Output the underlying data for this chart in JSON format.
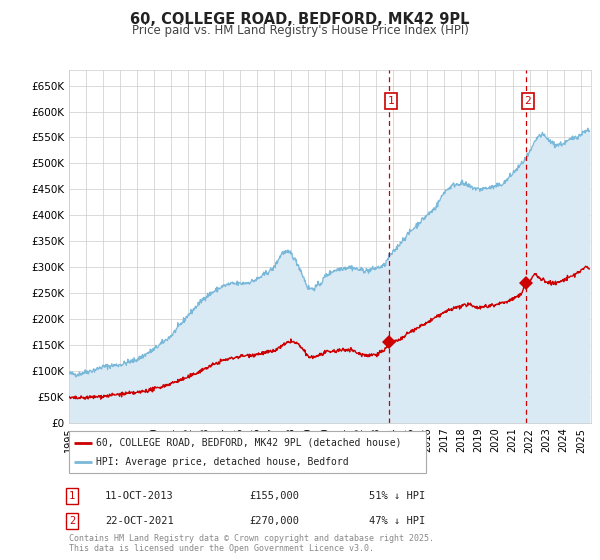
{
  "title": "60, COLLEGE ROAD, BEDFORD, MK42 9PL",
  "subtitle": "Price paid vs. HM Land Registry's House Price Index (HPI)",
  "title_fontsize": 10.5,
  "subtitle_fontsize": 8.5,
  "hpi_color": "#7ab8d9",
  "hpi_fill_color": "#daeaf5",
  "price_color": "#cc0000",
  "background_color": "#ffffff",
  "grid_color": "#cccccc",
  "ylim": [
    0,
    680000
  ],
  "yticks": [
    0,
    50000,
    100000,
    150000,
    200000,
    250000,
    300000,
    350000,
    400000,
    450000,
    500000,
    550000,
    600000,
    650000
  ],
  "ytick_labels": [
    "£0",
    "£50K",
    "£100K",
    "£150K",
    "£200K",
    "£250K",
    "£300K",
    "£350K",
    "£400K",
    "£450K",
    "£500K",
    "£550K",
    "£600K",
    "£650K"
  ],
  "xlim_start": 1995.0,
  "xlim_end": 2025.6,
  "xtick_years": [
    1995,
    1996,
    1997,
    1998,
    1999,
    2000,
    2001,
    2002,
    2003,
    2004,
    2005,
    2006,
    2007,
    2008,
    2009,
    2010,
    2011,
    2012,
    2013,
    2014,
    2015,
    2016,
    2017,
    2018,
    2019,
    2020,
    2021,
    2022,
    2023,
    2024,
    2025
  ],
  "transaction1": {
    "date": 2013.78,
    "price": 155000,
    "label": "1",
    "desc": "11-OCT-2013",
    "price_str": "£155,000",
    "pct": "51% ↓ HPI"
  },
  "transaction2": {
    "date": 2021.8,
    "price": 270000,
    "label": "2",
    "desc": "22-OCT-2021",
    "price_str": "£270,000",
    "pct": "47% ↓ HPI"
  },
  "legend_red_label": "60, COLLEGE ROAD, BEDFORD, MK42 9PL (detached house)",
  "legend_blue_label": "HPI: Average price, detached house, Bedford",
  "footer": "Contains HM Land Registry data © Crown copyright and database right 2025.\nThis data is licensed under the Open Government Licence v3.0."
}
